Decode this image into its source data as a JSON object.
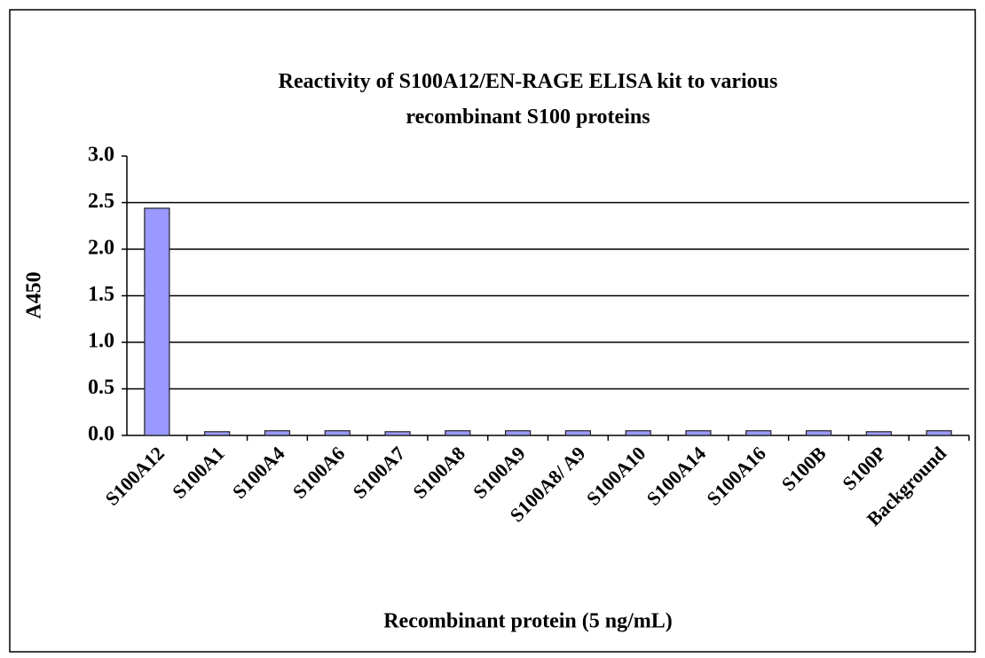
{
  "chart_data": {
    "type": "bar",
    "title": "Reactivity of S100A12/EN-RAGE ELISA kit to various\nrecombinant  S100 proteins",
    "x_label": "Recombinant protein (5 ng/mL)",
    "y_label": "A450",
    "categories": [
      "S100A12",
      "S100A1",
      "S100A4",
      "S100A6",
      "S100A7",
      "S100A8",
      "S100A9",
      "S100A8/ A9",
      "S100A10",
      "S100A14",
      "S100A16",
      "S100B",
      "S100P",
      "Background"
    ],
    "values": [
      2.44,
      0.04,
      0.05,
      0.05,
      0.04,
      0.05,
      0.05,
      0.05,
      0.05,
      0.05,
      0.05,
      0.05,
      0.04,
      0.05
    ],
    "color": "#9999ff",
    "ylim": [
      0,
      3
    ],
    "yticks": [
      {
        "value": 0,
        "label": "0.0"
      },
      {
        "value": 0.5,
        "label": "0.5"
      },
      {
        "value": 1,
        "label": "1.0"
      },
      {
        "value": 1.5,
        "label": "1.5"
      },
      {
        "value": 2,
        "label": "2.0"
      },
      {
        "value": 2.5,
        "label": "2.5"
      },
      {
        "value": 3,
        "label": "3.0"
      }
    ],
    "grid": true
  }
}
